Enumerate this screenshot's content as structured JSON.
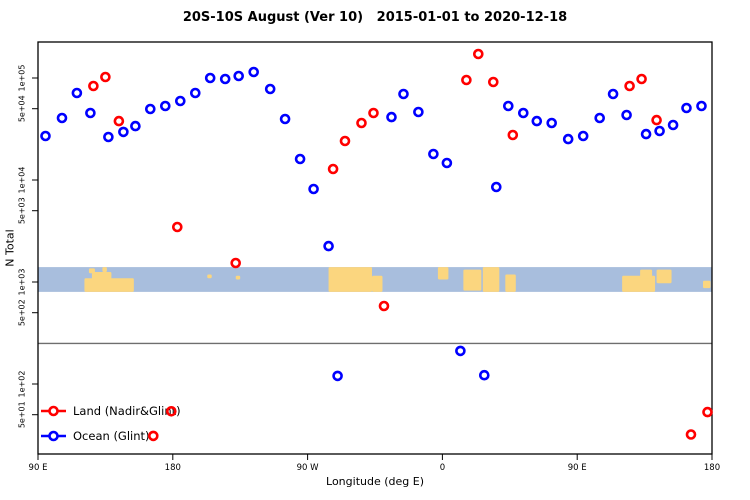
{
  "chart_data": {
    "type": "scatter",
    "title": "20S-10S August (Ver 10)   2015-01-01 to 2020-12-18",
    "xlabel": "Longitude (deg E)",
    "ylabel": "N Total",
    "x_axis": {
      "min": 90,
      "max": 540,
      "ticks": [
        {
          "pos": 90,
          "label": "90 E"
        },
        {
          "pos": 180,
          "label": "180"
        },
        {
          "pos": 270,
          "label": "90 W"
        },
        {
          "pos": 360,
          "label": "0"
        },
        {
          "pos": 450,
          "label": "90 E"
        },
        {
          "pos": 540,
          "label": "180"
        }
      ]
    },
    "y_axis": {
      "scale": "log",
      "min": 20,
      "max": 225000,
      "ticks": [
        {
          "value": 100000,
          "label": "1e+05"
        },
        {
          "value": 50000,
          "label": "5e+04"
        },
        {
          "value": 10000,
          "label": "1e+04"
        },
        {
          "value": 5000,
          "label": "5e+03"
        },
        {
          "value": 1000,
          "label": "1e+03"
        },
        {
          "value": 500,
          "label": "5e+02"
        },
        {
          "value": 100,
          "label": "1e+02"
        },
        {
          "value": 50,
          "label": "5e+01"
        }
      ]
    },
    "reference_line": {
      "value": 250,
      "color": "#6e6e6e"
    },
    "map_strip": {
      "value_top": 1400,
      "value_bottom": 800,
      "ocean_color": "#a8bedd",
      "land_color": "#fbd67f",
      "land_segments": [
        {
          "lon": [
            121,
            154
          ],
          "top": 0.45,
          "bottom": 1
        },
        {
          "lon": [
            126,
            139
          ],
          "top": 0.2,
          "bottom": 0.5
        },
        {
          "lon": [
            124,
            128
          ],
          "top": 0.05,
          "bottom": 0.25
        },
        {
          "lon": [
            133,
            136
          ],
          "top": 0.0,
          "bottom": 0.2
        },
        {
          "lon": [
            203,
            206
          ],
          "top": 0.3,
          "bottom": 0.45
        },
        {
          "lon": [
            222,
            225
          ],
          "top": 0.35,
          "bottom": 0.5
        },
        {
          "lon": [
            284,
            313
          ],
          "top": 0,
          "bottom": 1
        },
        {
          "lon": [
            313,
            320
          ],
          "top": 0.35,
          "bottom": 1
        },
        {
          "lon": [
            357,
            364
          ],
          "top": 0,
          "bottom": 0.5
        },
        {
          "lon": [
            374,
            386
          ],
          "top": 0.1,
          "bottom": 0.95
        },
        {
          "lon": [
            387,
            398
          ],
          "top": 0,
          "bottom": 1
        },
        {
          "lon": [
            402,
            409
          ],
          "top": 0.3,
          "bottom": 1
        },
        {
          "lon": [
            480,
            502
          ],
          "top": 0.35,
          "bottom": 1
        },
        {
          "lon": [
            492,
            500
          ],
          "top": 0.1,
          "bottom": 0.45
        },
        {
          "lon": [
            503,
            513
          ],
          "top": 0.1,
          "bottom": 0.65
        },
        {
          "lon": [
            534,
            539
          ],
          "top": 0.55,
          "bottom": 0.85
        }
      ]
    },
    "series": [
      {
        "name": "Land (Nadir&Glint)",
        "color": "#ff0000",
        "marker": "open-circle",
        "points": [
          [
            127,
            83500
          ],
          [
            135,
            102300
          ],
          [
            144,
            37800
          ],
          [
            167,
            31
          ],
          [
            179,
            54
          ],
          [
            183,
            3460
          ],
          [
            222,
            1535
          ],
          [
            287,
            12820
          ],
          [
            295,
            24100
          ],
          [
            306,
            36200
          ],
          [
            314,
            45400
          ],
          [
            321,
            582
          ],
          [
            376,
            95500
          ],
          [
            384,
            171800
          ],
          [
            394,
            91400
          ],
          [
            407,
            27600
          ],
          [
            485,
            83500
          ],
          [
            493,
            97700
          ],
          [
            503,
            38700
          ],
          [
            526,
            32
          ],
          [
            537,
            53
          ]
        ]
      },
      {
        "name": "Ocean (Glint)",
        "color": "#0000ff",
        "marker": "open-circle",
        "points": [
          [
            95,
            27000
          ],
          [
            106,
            40500
          ],
          [
            116,
            71300
          ],
          [
            125,
            45400
          ],
          [
            137,
            26400
          ],
          [
            147,
            29600
          ],
          [
            155,
            33800
          ],
          [
            165,
            49700
          ],
          [
            175,
            53100
          ],
          [
            185,
            59500
          ],
          [
            195,
            71300
          ],
          [
            205,
            100000
          ],
          [
            215,
            97800
          ],
          [
            224,
            104600
          ],
          [
            234,
            114600
          ],
          [
            245,
            78000
          ],
          [
            255,
            39600
          ],
          [
            265,
            16070
          ],
          [
            274,
            8160
          ],
          [
            284,
            2250
          ],
          [
            290,
            120
          ],
          [
            326,
            41400
          ],
          [
            334,
            69700
          ],
          [
            344,
            46400
          ],
          [
            354,
            17990
          ],
          [
            363,
            14680
          ],
          [
            372,
            211
          ],
          [
            388,
            122
          ],
          [
            396,
            8540
          ],
          [
            404,
            53100
          ],
          [
            414,
            45400
          ],
          [
            423,
            37800
          ],
          [
            433,
            36200
          ],
          [
            444,
            25200
          ],
          [
            454,
            27000
          ],
          [
            465,
            40500
          ],
          [
            474,
            69700
          ],
          [
            483,
            43400
          ],
          [
            496,
            28200
          ],
          [
            505,
            30200
          ],
          [
            514,
            34600
          ],
          [
            523,
            50800
          ],
          [
            533,
            53100
          ]
        ]
      }
    ],
    "legend": {
      "position": "bottom-left"
    }
  }
}
